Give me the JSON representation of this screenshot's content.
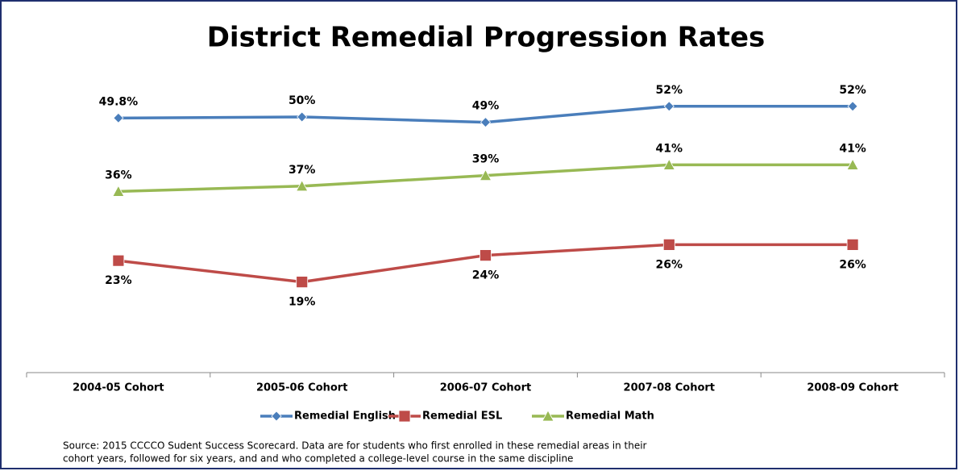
{
  "chart_data": {
    "type": "line",
    "title": "District Remedial Progression Rates",
    "categories": [
      "2004-05 Cohort",
      "2005-06 Cohort",
      "2006-07 Cohort",
      "2007-08 Cohort",
      "2008-09 Cohort"
    ],
    "series": [
      {
        "name": "Remedial English",
        "color": "#4a7ebb",
        "marker": "diamond",
        "values": [
          49.8,
          50,
          49,
          52,
          52
        ],
        "value_labels": [
          "49.8%",
          "50%",
          "49%",
          "52%",
          "52%"
        ]
      },
      {
        "name": "Remedial ESL",
        "color": "#be4b48",
        "marker": "square",
        "values": [
          23,
          19,
          24,
          26,
          26
        ],
        "value_labels": [
          "23%",
          "19%",
          "24%",
          "26%",
          "26%"
        ]
      },
      {
        "name": "Remedial Math",
        "color": "#98b954",
        "marker": "triangle",
        "values": [
          36,
          37,
          39,
          41,
          41
        ],
        "value_labels": [
          "36%",
          "37%",
          "39%",
          "41%",
          "41%"
        ]
      }
    ],
    "legend": "bottom",
    "source": [
      "Source: 2015  CCCCO Sudent Success Scorecard.  Data are for students who first enrolled in these remedial areas in their",
      "cohort years, followed for six years, and and who completed a college-level course in the same discipline"
    ]
  }
}
